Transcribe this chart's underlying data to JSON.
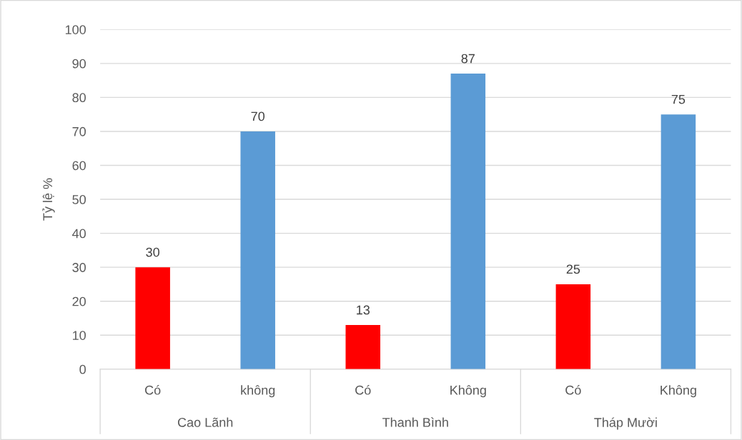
{
  "chart_data": {
    "type": "bar",
    "ylabel": "Tỷ lệ %",
    "categories": [
      "Có",
      "không",
      "Có",
      "Không",
      "Có",
      "Không"
    ],
    "values": [
      30,
      70,
      13,
      87,
      25,
      75
    ],
    "colors": [
      "#ff0000",
      "#5b9bd5",
      "#ff0000",
      "#5b9bd5",
      "#ff0000",
      "#5b9bd5"
    ],
    "ylim": [
      0,
      100
    ],
    "yticks": [
      0,
      10,
      20,
      30,
      40,
      50,
      60,
      70,
      80,
      90,
      100
    ],
    "grid": "y",
    "data_labels": true,
    "annotations": [
      "Cao Lãnh",
      "Thanh Bình",
      "Tháp Mười"
    ]
  }
}
